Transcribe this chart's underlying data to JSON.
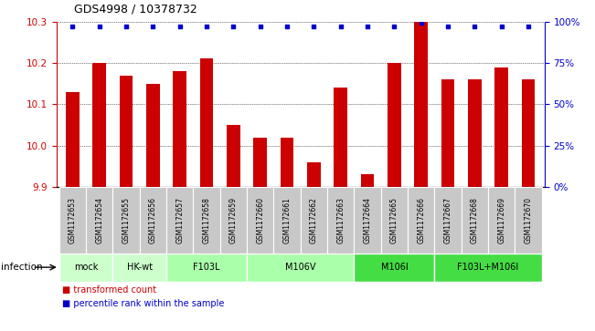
{
  "title": "GDS4998 / 10378732",
  "samples": [
    "GSM1172653",
    "GSM1172654",
    "GSM1172655",
    "GSM1172656",
    "GSM1172657",
    "GSM1172658",
    "GSM1172659",
    "GSM1172660",
    "GSM1172661",
    "GSM1172662",
    "GSM1172663",
    "GSM1172664",
    "GSM1172665",
    "GSM1172666",
    "GSM1172667",
    "GSM1172668",
    "GSM1172669",
    "GSM1172670"
  ],
  "bar_values": [
    10.13,
    10.2,
    10.17,
    10.15,
    10.18,
    10.21,
    10.05,
    10.02,
    10.02,
    9.96,
    10.14,
    9.93,
    10.2,
    10.3,
    10.16,
    10.16,
    10.19,
    10.16
  ],
  "percentile_values": [
    97,
    97,
    97,
    97,
    97,
    97,
    97,
    97,
    97,
    97,
    97,
    97,
    97,
    99,
    97,
    97,
    97,
    97
  ],
  "groups": [
    {
      "label": "mock",
      "start": 0,
      "end": 2,
      "color": "#ccffcc"
    },
    {
      "label": "HK-wt",
      "start": 2,
      "end": 4,
      "color": "#ccffcc"
    },
    {
      "label": "F103L",
      "start": 4,
      "end": 7,
      "color": "#aaffaa"
    },
    {
      "label": "M106V",
      "start": 7,
      "end": 11,
      "color": "#aaffaa"
    },
    {
      "label": "M106I",
      "start": 11,
      "end": 14,
      "color": "#44dd44"
    },
    {
      "label": "F103L+M106I",
      "start": 14,
      "end": 18,
      "color": "#44dd44"
    }
  ],
  "ylim": [
    9.9,
    10.3
  ],
  "yticks": [
    9.9,
    10.0,
    10.1,
    10.2,
    10.3
  ],
  "percentile_ylim": [
    0,
    100
  ],
  "percentile_yticks": [
    0,
    25,
    50,
    75,
    100
  ],
  "percentile_ytick_labels": [
    "0%",
    "25%",
    "50%",
    "75%",
    "100%"
  ],
  "bar_color": "#cc0000",
  "dot_color": "#0000cc",
  "bar_bottom": 9.9,
  "infection_label": "infection",
  "legend_bar": "transformed count",
  "legend_dot": "percentile rank within the sample",
  "sample_box_color": "#c8c8c8",
  "title_fontsize": 9,
  "bar_width": 0.5,
  "n_samples": 18
}
